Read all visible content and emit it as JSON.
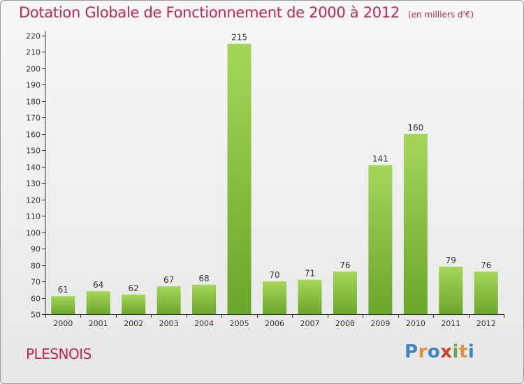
{
  "chart_data": {
    "type": "bar",
    "title": "Dotation Globale de Fonctionnement de 2000 à 2012",
    "subtitle": "(en milliers d'€)",
    "categories": [
      "2000",
      "2001",
      "2002",
      "2003",
      "2004",
      "2005",
      "2006",
      "2007",
      "2008",
      "2009",
      "2010",
      "2011",
      "2012"
    ],
    "values": [
      61,
      64,
      62,
      67,
      68,
      215,
      70,
      71,
      76,
      141,
      160,
      79,
      76
    ],
    "ylim": [
      50,
      220
    ],
    "yticks": [
      50,
      60,
      70,
      80,
      90,
      100,
      110,
      120,
      130,
      140,
      150,
      160,
      170,
      180,
      190,
      200,
      210,
      220
    ],
    "grid": false,
    "bar_color_top": "#a5d65a",
    "bar_color_bottom": "#6aa62a"
  },
  "footer": {
    "commune": "PLESNOIS",
    "brand": "Proxiti"
  },
  "brand_letters": [
    {
      "ch": "P",
      "color": "#3d85c6"
    },
    {
      "ch": "r",
      "color": "#e69138"
    },
    {
      "ch": "o",
      "color": "#3d85c6"
    },
    {
      "ch": "x",
      "color": "#cc4125"
    },
    {
      "ch": "i",
      "color": "#6aa84f"
    },
    {
      "ch": "t",
      "color": "#e69138"
    },
    {
      "ch": "i",
      "color": "#3d85c6"
    }
  ],
  "colors": {
    "title": "#c1274c",
    "axis": "#333333"
  }
}
